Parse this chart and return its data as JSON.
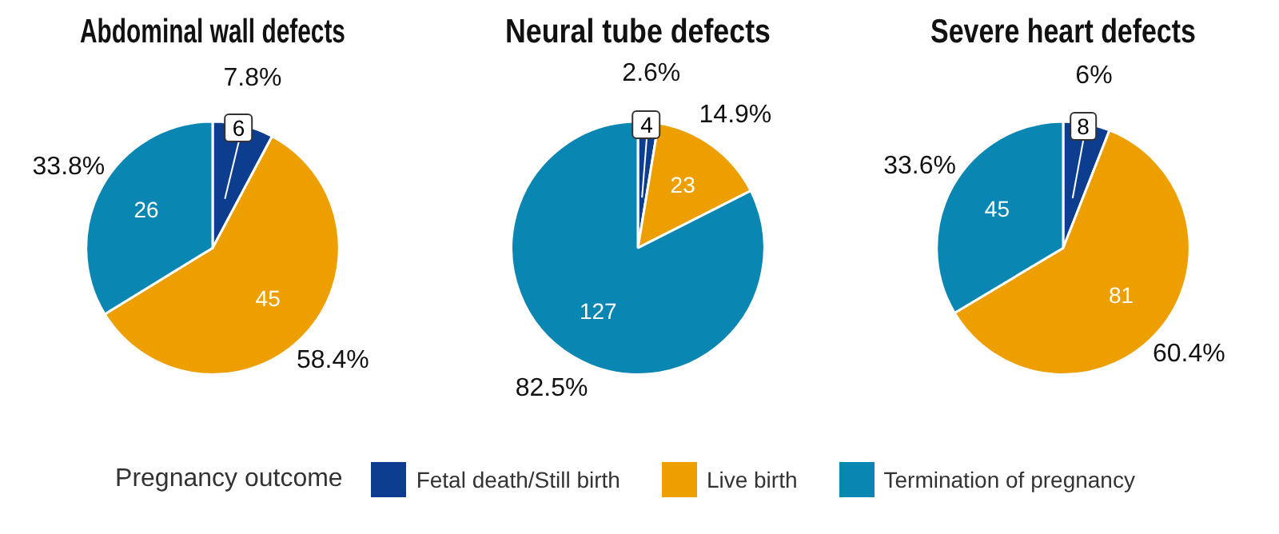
{
  "chart_data": [
    {
      "type": "pie",
      "title": "Abdominal wall defects",
      "categories": [
        "Fetal death/Still birth",
        "Live birth",
        "Termination of pregnancy"
      ],
      "values": [
        6,
        45,
        26
      ],
      "colors": [
        "#0c3d8e",
        "#ee9f00",
        "#0a86b3"
      ],
      "data_labels": true,
      "legend": "bottom",
      "legend_title": "Pregnancy outcome",
      "annotations": [
        "7.8%",
        "58.4%",
        "33.8%"
      ]
    },
    {
      "type": "pie",
      "title": "Neural tube defects",
      "categories": [
        null,
        null,
        null
      ],
      "values": [
        4,
        23,
        127
      ],
      "colors": [
        "#0c3d8e",
        "#ee9f00",
        "#0a86b3"
      ],
      "data_labels": true,
      "annotations": [
        "2.6%",
        "14.9%",
        "82.5%"
      ]
    },
    {
      "type": "pie",
      "title": "Severe heart defects",
      "categories": [
        null,
        null,
        null
      ],
      "values": [
        8,
        81,
        45
      ],
      "colors": [
        "#0c3d8e",
        "#ee9f00",
        "#0a86b3"
      ],
      "data_labels": true,
      "annotations": [
        "6%",
        "60.4%",
        "33.6%"
      ]
    }
  ]
}
